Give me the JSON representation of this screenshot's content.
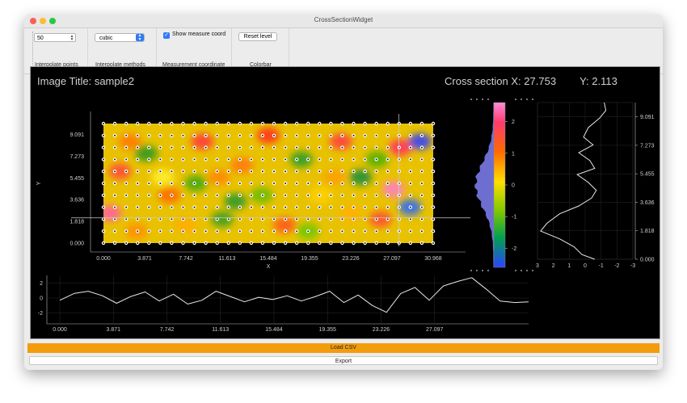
{
  "window": {
    "title": "CrossSectionWidget"
  },
  "toolbar": {
    "interpolate_points": {
      "value": "50",
      "caption": "Interpolate points"
    },
    "interpolate_methods": {
      "value": "cubic",
      "caption": "Interpolate methods"
    },
    "measurement": {
      "label": "Show measure coord",
      "checked": true,
      "caption": "Measurement coordinate"
    },
    "colorbar": {
      "button": "Reset level",
      "caption": "Colorbar"
    }
  },
  "plot": {
    "image_title_label": "Image Title:",
    "image_title": "sample2",
    "cross_label": "Cross section X:",
    "cross_x": "27.753",
    "y_label": "Y:",
    "cross_y": "2.113"
  },
  "chart_data": [
    {
      "type": "heatmap",
      "xlabel": "X",
      "ylabel": "Y",
      "x_ticks": [
        "0.000",
        "3.871",
        "7.742",
        "11.613",
        "15.484",
        "19.355",
        "23.226",
        "27.097",
        "30.968"
      ],
      "y_ticks": [
        "0.000",
        "1.818",
        "3.636",
        "5.455",
        "7.273",
        "9.091"
      ],
      "xlim": [
        0,
        30.968
      ],
      "ylim": [
        0,
        10
      ],
      "cross_section": {
        "x": 27.753,
        "y": 2.113
      }
    },
    {
      "type": "colorbar",
      "ticks": [
        "2",
        "1",
        "0",
        "-1",
        "-2"
      ],
      "range": [
        -2.6,
        2.6
      ]
    },
    {
      "type": "line",
      "name": "vertical profile",
      "x_ticks": [
        "3",
        "2",
        "1",
        "0",
        "-1",
        "-2",
        "-3"
      ],
      "y_ticks": [
        "9.091",
        "7.273",
        "5.455",
        "3.636",
        "1.818",
        "0.000"
      ],
      "points": [
        [
          -1.2,
          10.0
        ],
        [
          -1.3,
          9.5
        ],
        [
          -0.9,
          9.0
        ],
        [
          -0.2,
          8.4
        ],
        [
          0.1,
          7.8
        ],
        [
          -0.5,
          7.3
        ],
        [
          0.4,
          6.8
        ],
        [
          -0.3,
          6.3
        ],
        [
          -0.6,
          5.8
        ],
        [
          0.5,
          5.4
        ],
        [
          -0.2,
          4.9
        ],
        [
          -0.7,
          4.4
        ],
        [
          -0.4,
          3.9
        ],
        [
          0.4,
          3.4
        ],
        [
          1.6,
          2.9
        ],
        [
          2.4,
          2.3
        ],
        [
          2.8,
          1.8
        ],
        [
          1.6,
          1.3
        ],
        [
          0.7,
          0.8
        ],
        [
          0.2,
          0.3
        ],
        [
          -0.6,
          0.0
        ]
      ]
    },
    {
      "type": "line",
      "name": "horizontal profile",
      "x_ticks": [
        "0.000",
        "3.871",
        "7.742",
        "11.613",
        "15.484",
        "19.355",
        "23.226",
        "27.097"
      ],
      "y_ticks": [
        "2",
        "0",
        "-2"
      ],
      "points": [
        [
          0,
          -0.3
        ],
        [
          1,
          0.6
        ],
        [
          2,
          0.9
        ],
        [
          3,
          0.3
        ],
        [
          4,
          -0.7
        ],
        [
          5,
          0.2
        ],
        [
          6,
          0.8
        ],
        [
          7,
          -0.4
        ],
        [
          8,
          0.5
        ],
        [
          9,
          -0.8
        ],
        [
          10,
          -0.3
        ],
        [
          11,
          0.9
        ],
        [
          12,
          0.2
        ],
        [
          13,
          -0.5
        ],
        [
          14,
          0.1
        ],
        [
          15,
          -0.2
        ],
        [
          16,
          0.3
        ],
        [
          17,
          -0.4
        ],
        [
          18,
          0.2
        ],
        [
          19,
          0.9
        ],
        [
          20,
          -0.6
        ],
        [
          21,
          0.4
        ],
        [
          22,
          -1.0
        ],
        [
          23,
          -1.9
        ],
        [
          24,
          0.6
        ],
        [
          25,
          1.4
        ],
        [
          26,
          -0.3
        ],
        [
          27,
          1.6
        ],
        [
          28,
          2.2
        ],
        [
          29,
          2.7
        ],
        [
          30,
          1.2
        ],
        [
          31,
          -0.4
        ],
        [
          32,
          -0.6
        ],
        [
          33,
          -0.5
        ]
      ]
    }
  ],
  "buttons": {
    "load_csv": "Load CSV",
    "export": "Export"
  }
}
